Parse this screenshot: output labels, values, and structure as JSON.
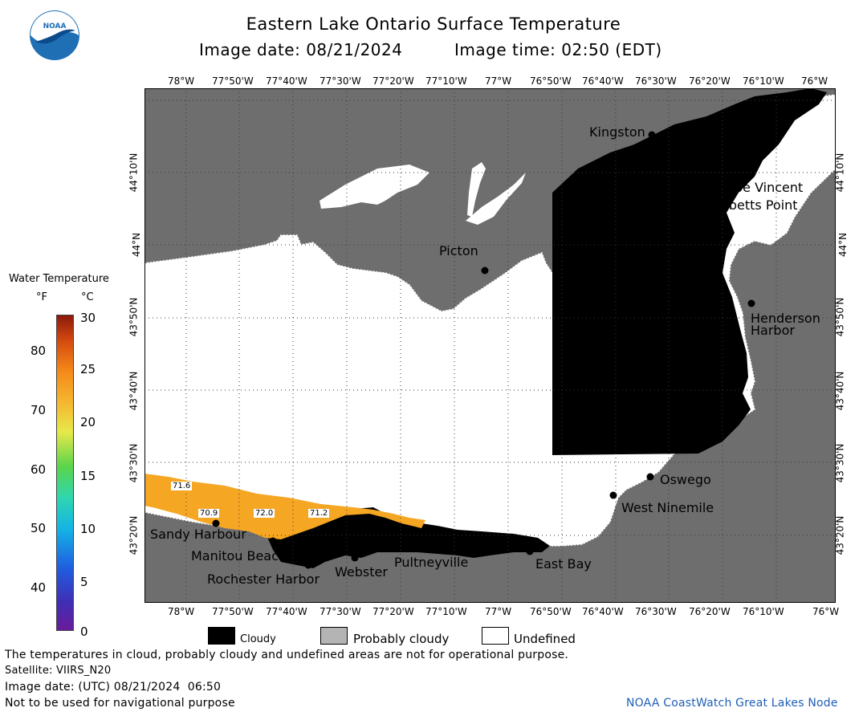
{
  "header": {
    "title": "Eastern Lake Ontario Surface Temperature",
    "image_date_line": "Image date: 08/21/2024",
    "image_time_line": "Image time: 02:50 (EDT)"
  },
  "logo": {
    "text": "NOAA",
    "colors": {
      "outer": "#1f6fb5",
      "inner": "#ffffff",
      "gull": "#0d4a8c"
    }
  },
  "axes": {
    "lon_ticks_top": [
      "78°W",
      "77°50'W",
      "77°40'W",
      "77°30'W",
      "77°20'W",
      "77°10'W",
      "77°W",
      "76°50'W",
      "76°40'W",
      "76°30'W",
      "76°20'W",
      "76°10'W",
      "76°W"
    ],
    "lon_ticks_bottom": [
      "78°W",
      "77°50'W",
      "77°40'W",
      "77°30'W",
      "77°20'W",
      "77°10'W",
      "77°W",
      "76°50'W",
      "76°40'W",
      "76°30'W",
      "76°20'W",
      "76°10'W",
      "76°W"
    ],
    "lat_ticks": [
      "44°10'N",
      "44°N",
      "43°50'N",
      "43°40'N",
      "43°30'N",
      "43°20'N"
    ]
  },
  "places": [
    {
      "name": "Kingston"
    },
    {
      "name": "Cape Vincent"
    },
    {
      "name": "Tibbetts Point"
    },
    {
      "name": "Picton"
    },
    {
      "name": "Henderson"
    },
    {
      "name": "Harbor"
    },
    {
      "name": "Oswego"
    },
    {
      "name": "West Ninemile"
    },
    {
      "name": "Sandy Harbour"
    },
    {
      "name": "Manitou Beach"
    },
    {
      "name": "Rochester Harbor"
    },
    {
      "name": "Webster"
    },
    {
      "name": "Pultneyville"
    },
    {
      "name": "East Bay"
    }
  ],
  "temp_labels": [
    "71.6",
    "70.9",
    "72.0",
    "71.2"
  ],
  "legend": {
    "title": "Water Temperature",
    "unit_f": "°F",
    "unit_c": "°C",
    "f_ticks": [
      "80",
      "70",
      "60",
      "50",
      "40"
    ],
    "c_ticks": [
      "30",
      "25",
      "20",
      "15",
      "10",
      "5",
      "0"
    ],
    "keys": [
      {
        "label": "Cloudy",
        "color": "#000000"
      },
      {
        "label": "Probably cloudy",
        "color": "#b4b4b4"
      },
      {
        "label": "Undefined",
        "color": "#ffffff"
      }
    ]
  },
  "colors": {
    "land": "#6e6e6e",
    "water_undefined": "#ffffff",
    "cloudy": "#000000",
    "warm": "#f5a623"
  },
  "footer": {
    "disclaimer": "The temperatures in cloud, probably cloudy and undefined areas are not for operational purpose.",
    "satellite": "Satellite: VIIRS_N20",
    "utc_date": "Image date: (UTC) 08/21/2024  06:50",
    "nav_warning": "Not to be used for navigational purpose",
    "credit": "NOAA CoastWatch Great Lakes Node"
  }
}
